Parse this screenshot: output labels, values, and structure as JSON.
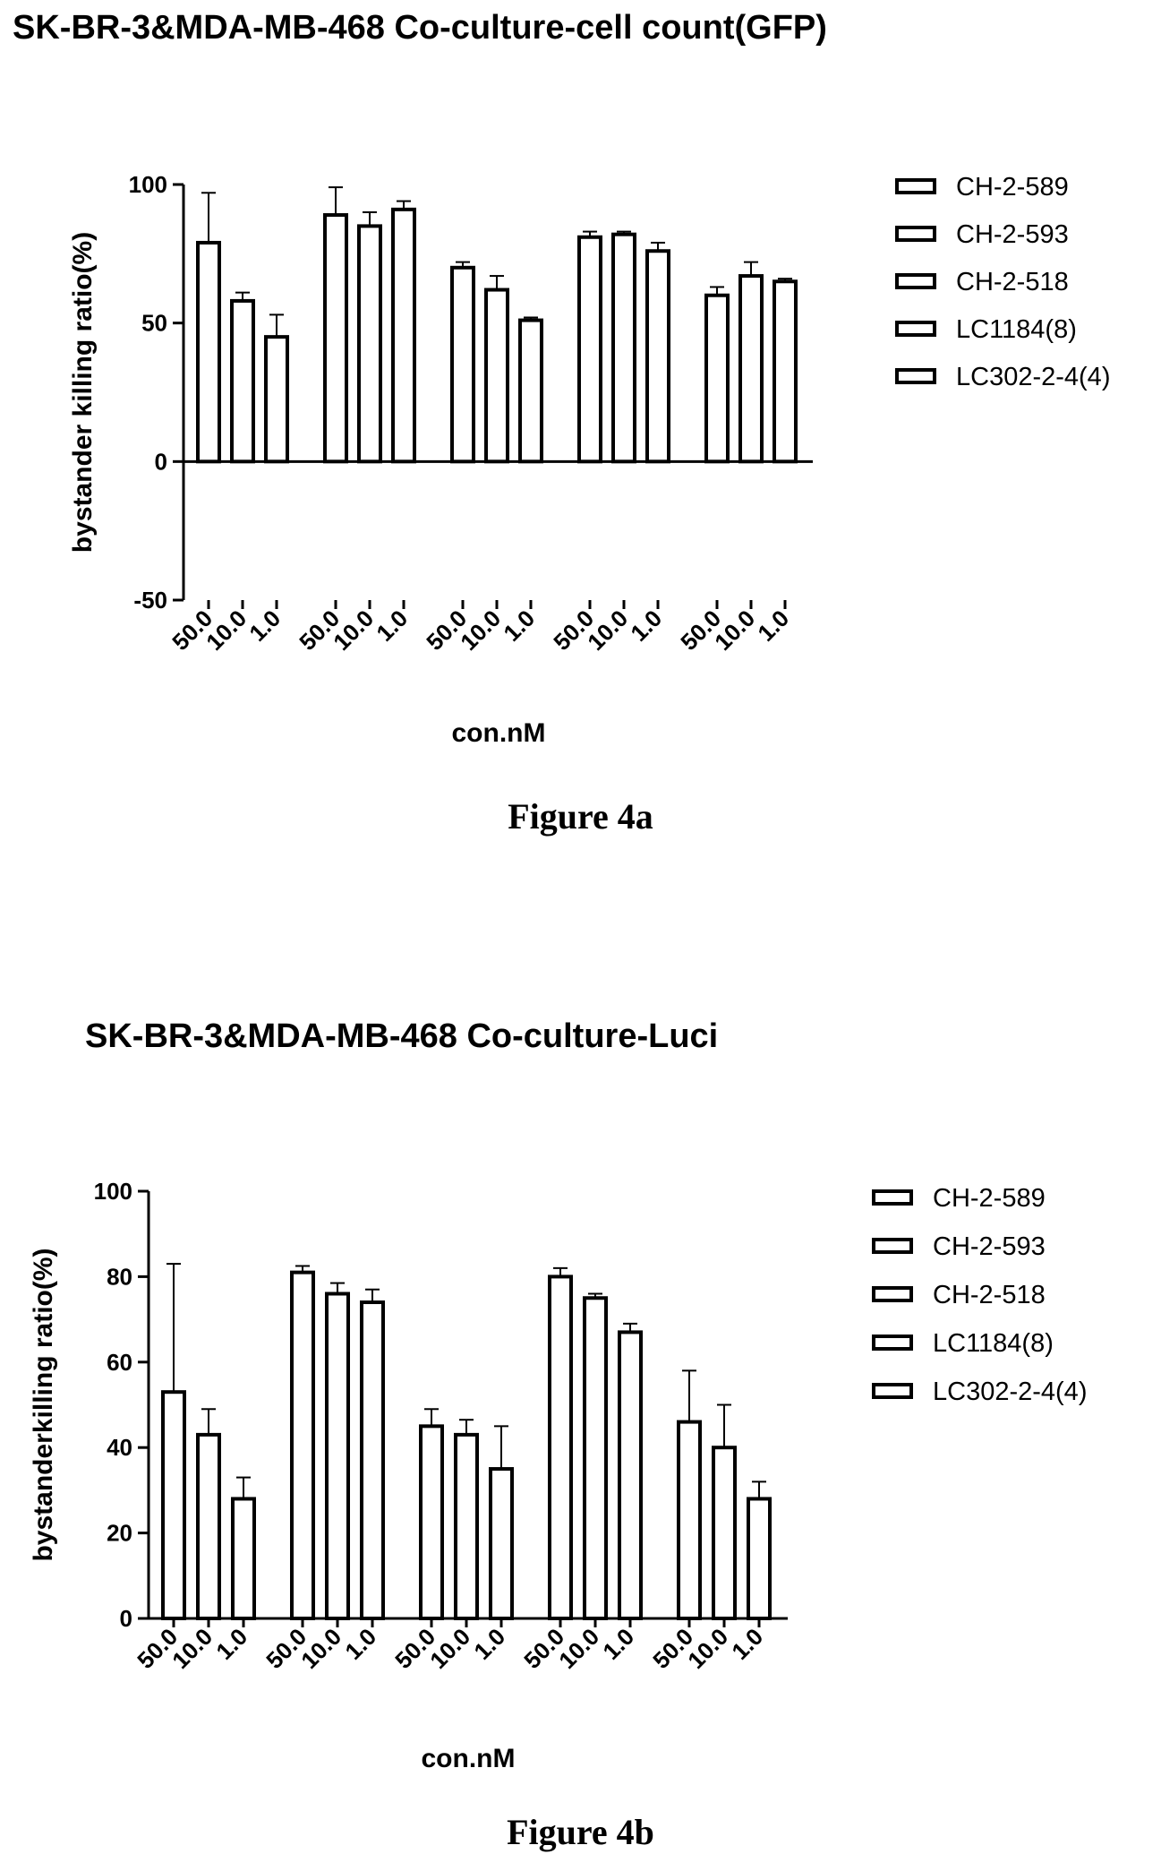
{
  "chart_data": [
    {
      "type": "bar",
      "title": "SK-BR-3&MDA-MB-468 Co-culture-cell count(GFP)",
      "xlabel": "con.nM",
      "ylabel": "bystander killing ratio(%)",
      "ylim": [
        -50,
        100
      ],
      "yticks": [
        "100",
        "50",
        "0",
        "-50"
      ],
      "legend_position": "right",
      "categories": [
        "50.0",
        "10.0",
        "1.0"
      ],
      "series": [
        {
          "name": "CH-2-589",
          "values": [
            79,
            58,
            45
          ],
          "errors": [
            18,
            3,
            8
          ]
        },
        {
          "name": "CH-2-593",
          "values": [
            89,
            85,
            91
          ],
          "errors": [
            10,
            5,
            3
          ]
        },
        {
          "name": "CH-2-518",
          "values": [
            70,
            62,
            51
          ],
          "errors": [
            2,
            5,
            1
          ]
        },
        {
          "name": "LC1184(8)",
          "values": [
            81,
            82,
            76
          ],
          "errors": [
            2,
            1,
            3
          ]
        },
        {
          "name": "LC302-2-4(4)",
          "values": [
            60,
            67,
            65
          ],
          "errors": [
            3,
            5,
            1
          ]
        }
      ],
      "caption": "Figure 4a"
    },
    {
      "type": "bar",
      "title": "SK-BR-3&MDA-MB-468 Co-culture-Luci",
      "xlabel": "con.nM",
      "ylabel": "bystanderkilling ratio(%)",
      "ylim": [
        0,
        100
      ],
      "yticks": [
        "100",
        "80",
        "60",
        "40",
        "20",
        "0"
      ],
      "legend_position": "right",
      "categories": [
        "50.0",
        "10.0",
        "1.0"
      ],
      "series": [
        {
          "name": "CH-2-589",
          "values": [
            53,
            43,
            28
          ],
          "errors": [
            30,
            6,
            5
          ]
        },
        {
          "name": "CH-2-593",
          "values": [
            81,
            76,
            74
          ],
          "errors": [
            1.5,
            2.5,
            3
          ]
        },
        {
          "name": "CH-2-518",
          "values": [
            45,
            43,
            35
          ],
          "errors": [
            4,
            3.5,
            10
          ]
        },
        {
          "name": "LC1184(8)",
          "values": [
            80,
            75,
            67
          ],
          "errors": [
            2,
            1,
            2
          ]
        },
        {
          "name": "LC302-2-4(4)",
          "values": [
            46,
            40,
            28
          ],
          "errors": [
            12,
            10,
            4
          ]
        }
      ],
      "caption": "Figure 4b"
    }
  ]
}
